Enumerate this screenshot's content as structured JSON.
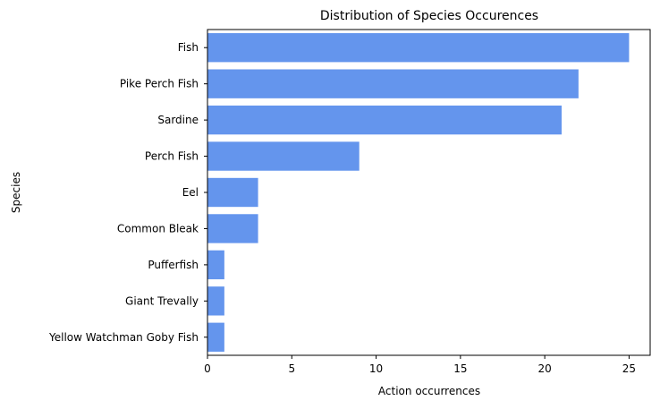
{
  "chart_data": {
    "type": "bar",
    "orientation": "horizontal",
    "title": "Distribution of Species Occurences",
    "xlabel": "Action occurrences",
    "ylabel": "Species",
    "categories": [
      "Fish",
      "Pike Perch Fish",
      "Sardine",
      "Perch Fish",
      "Eel",
      "Common Bleak",
      "Pufferfish",
      "Giant Trevally",
      "Yellow Watchman Goby Fish"
    ],
    "values": [
      25,
      22,
      21,
      9,
      3,
      3,
      1,
      1,
      1
    ],
    "xlim": [
      0,
      26.25
    ],
    "xticks": [
      0,
      5,
      10,
      15,
      20,
      25
    ],
    "xtick_labels": [
      "0",
      "5",
      "10",
      "15",
      "20",
      "25"
    ],
    "grid": false,
    "legend": "none",
    "bar_color": "#6495ED"
  }
}
